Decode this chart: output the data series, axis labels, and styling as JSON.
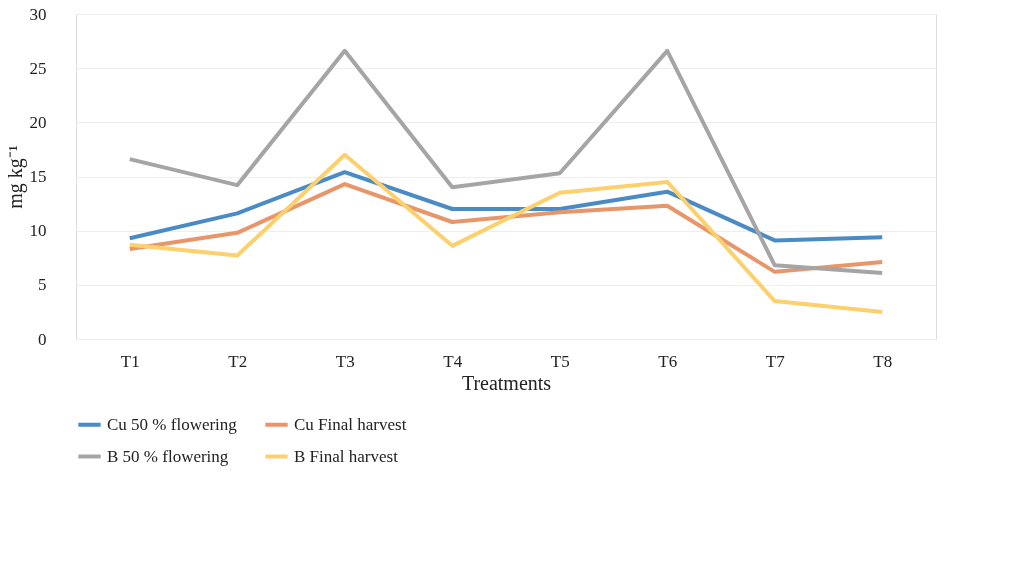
{
  "chart_data": {
    "type": "line",
    "xlabel": "Treatments",
    "ylabel": "mg kg⁻¹",
    "categories": [
      "T1",
      "T2",
      "T3",
      "T4",
      "T5",
      "T6",
      "T7",
      "T8"
    ],
    "series": [
      {
        "name": "Cu 50 % flowering",
        "color": "#4a8bc6",
        "values": [
          9.3,
          11.6,
          15.4,
          12.0,
          12.0,
          13.6,
          9.1,
          9.4
        ]
      },
      {
        "name": "Cu Final harvest",
        "color": "#e8956a",
        "values": [
          8.3,
          9.8,
          14.3,
          10.8,
          11.7,
          12.3,
          6.2,
          7.1
        ]
      },
      {
        "name": "B 50 % flowering",
        "color": "#a5a5a5",
        "values": [
          16.6,
          14.2,
          26.6,
          14.0,
          15.3,
          26.6,
          6.8,
          6.1
        ]
      },
      {
        "name": "B Final harvest",
        "color": "#fdd06e",
        "values": [
          8.7,
          7.7,
          17.0,
          8.6,
          13.5,
          14.5,
          3.5,
          2.5
        ]
      }
    ],
    "ylim": [
      0,
      30
    ],
    "yticks": [
      0,
      5,
      10,
      15,
      20,
      25,
      30
    ],
    "grid": "y",
    "legend": "bottom",
    "line_style": "solid",
    "marker": "none"
  }
}
